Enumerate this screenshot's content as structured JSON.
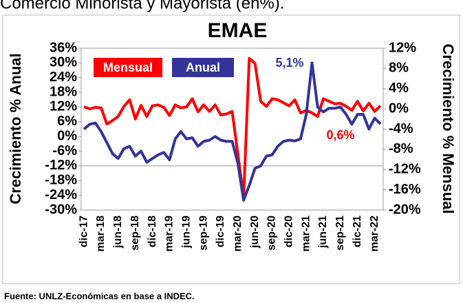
{
  "chart_data": {
    "type": "line",
    "subtitle": "Comercio Minorista y Mayorista (en%).",
    "title": "EMAE",
    "y_label": "Crecimiento % Anual",
    "y2_label": "Crecimiento % Mensual",
    "source": "Fuente: UNLZ-Económicas en base a INDEC.",
    "categories": [
      "dic-17",
      null,
      null,
      "mar-18",
      null,
      null,
      "jun-18",
      null,
      null,
      "sep-18",
      null,
      null,
      "dic-18",
      null,
      null,
      "mar-19",
      null,
      null,
      "jun-19",
      null,
      null,
      "sep-19",
      null,
      null,
      "dic-19",
      null,
      null,
      "mar-20",
      null,
      null,
      "jun-20",
      null,
      null,
      "sep-20",
      null,
      null,
      "dic-20",
      null,
      null,
      "mar-21",
      null,
      null,
      "jun-21",
      null,
      null,
      "sep-21",
      null,
      null,
      "dic-21",
      null,
      null,
      "mar-22",
      null
    ],
    "series": [
      {
        "name": "Mensual",
        "color": "#ff0000",
        "axis": "y2",
        "values": [
          0.4,
          0,
          0.3,
          0.2,
          -3,
          -2.3,
          -1.5,
          0.5,
          1.8,
          -2,
          0.7,
          -1.5,
          0.6,
          0.8,
          0.3,
          -1.3,
          0.8,
          0.2,
          0.4,
          2,
          -0.6,
          0.8,
          -0.5,
          0.8,
          -1.2,
          -1,
          -0.5,
          -9,
          -17.5,
          10,
          9,
          1.5,
          0.5,
          2,
          1.8,
          1.2,
          0.6,
          1.8,
          -0.8,
          -0.3,
          -0.8,
          -1.5,
          2,
          1.5,
          1,
          1.1,
          0.5,
          -0.3,
          1.5,
          -0.4,
          1.1,
          -0.5,
          0.6
        ]
      },
      {
        "name": "Anual",
        "color": "#33339a",
        "values": [
          3,
          5,
          5.5,
          2,
          -2.5,
          -7,
          -9,
          -5,
          -4,
          -8,
          -6,
          -10.5,
          -9,
          -7.5,
          -6.5,
          -9.5,
          -1,
          2,
          -1,
          -0.5,
          -4,
          -2,
          -1.5,
          0,
          -1.5,
          -2,
          -2,
          -11,
          -26,
          -20,
          -13,
          -12,
          -8,
          -7.5,
          -4,
          -2,
          -1.5,
          -1.8,
          -1,
          9,
          30,
          12,
          10,
          11.5,
          11.5,
          12,
          9,
          5,
          9,
          9,
          3,
          7.5,
          5.1
        ]
      }
    ],
    "annotations": [
      {
        "text": "5,1%",
        "color": "#33339a"
      },
      {
        "text": "0,6%",
        "color": "#ff0000"
      }
    ],
    "ylim": [
      -30,
      36
    ],
    "yticks": [
      {
        "value": 36,
        "label": "36%"
      },
      {
        "value": 30,
        "label": "30%"
      },
      {
        "value": 24,
        "label": "24%"
      },
      {
        "value": 18,
        "label": "18%"
      },
      {
        "value": 12,
        "label": "12%"
      },
      {
        "value": 6,
        "label": "6%"
      },
      {
        "value": 0,
        "label": "0%"
      },
      {
        "value": -6,
        "label": "-6%"
      },
      {
        "value": -12,
        "label": "-12%"
      },
      {
        "value": -18,
        "label": "-18%"
      },
      {
        "value": -24,
        "label": "-24%"
      },
      {
        "value": -30,
        "label": "-30%"
      }
    ],
    "y2lim": [
      -20,
      12
    ],
    "y2ticks": [
      {
        "value": 12,
        "label": "12%"
      },
      {
        "value": 8,
        "label": "8%"
      },
      {
        "value": 4,
        "label": "4%"
      },
      {
        "value": 0,
        "label": "0%"
      },
      {
        "value": -4,
        "label": "-4%"
      },
      {
        "value": -8,
        "label": "-8%"
      },
      {
        "value": -12,
        "label": "-12%"
      },
      {
        "value": -16,
        "label": "-16%"
      },
      {
        "value": -20,
        "label": "-20%"
      }
    ],
    "xaxis_crossing": -12,
    "grid": false
  }
}
